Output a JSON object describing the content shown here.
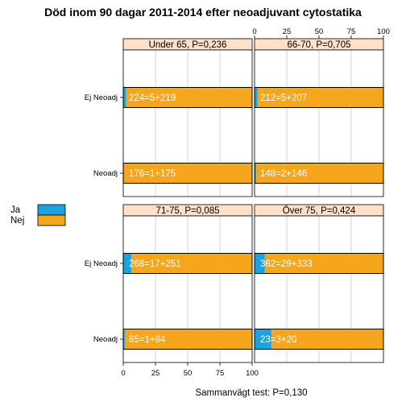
{
  "colors": {
    "ja": "#1ba3e0",
    "nej": "#f6a61c",
    "strip": "#fde0c7",
    "grid": "#c8c8c8"
  },
  "chart_data": {
    "type": "bar",
    "orientation": "horizontal",
    "stacked": true,
    "title": "Död inom 90 dagar 2011-2014 efter neoadjuvant cytostatika",
    "footer": "Sammanvägt test: P=0,130",
    "xlim": [
      0,
      100
    ],
    "xticks": [
      0,
      25,
      50,
      75,
      100
    ],
    "categories": [
      "Ej Neoadj",
      "Neoadj"
    ],
    "legend": {
      "position": "left",
      "entries": [
        "Ja",
        "Nej"
      ]
    },
    "grid": true,
    "panels": [
      {
        "strip": "Under 65, P=0,236",
        "bars": [
          {
            "category": "Ej Neoadj",
            "label": "224=5+219",
            "ja": 5,
            "nej": 219
          },
          {
            "category": "Neoadj",
            "label": "176=1+175",
            "ja": 1,
            "nej": 175
          }
        ]
      },
      {
        "strip": "66-70, P=0,705",
        "bars": [
          {
            "category": "Ej Neoadj",
            "label": "212=5+207",
            "ja": 5,
            "nej": 207
          },
          {
            "category": "Neoadj",
            "label": "148=2+146",
            "ja": 2,
            "nej": 146
          }
        ]
      },
      {
        "strip": "71-75, P=0,085",
        "bars": [
          {
            "category": "Ej Neoadj",
            "label": "268=17+251",
            "ja": 17,
            "nej": 251
          },
          {
            "category": "Neoadj",
            "label": "85=1+84",
            "ja": 1,
            "nej": 84
          }
        ]
      },
      {
        "strip": "Över 75, P=0,424",
        "bars": [
          {
            "category": "Ej Neoadj",
            "label": "362=29+333",
            "ja": 29,
            "nej": 333
          },
          {
            "category": "Neoadj",
            "label": "23=3+20",
            "ja": 3,
            "nej": 20
          }
        ]
      }
    ]
  }
}
